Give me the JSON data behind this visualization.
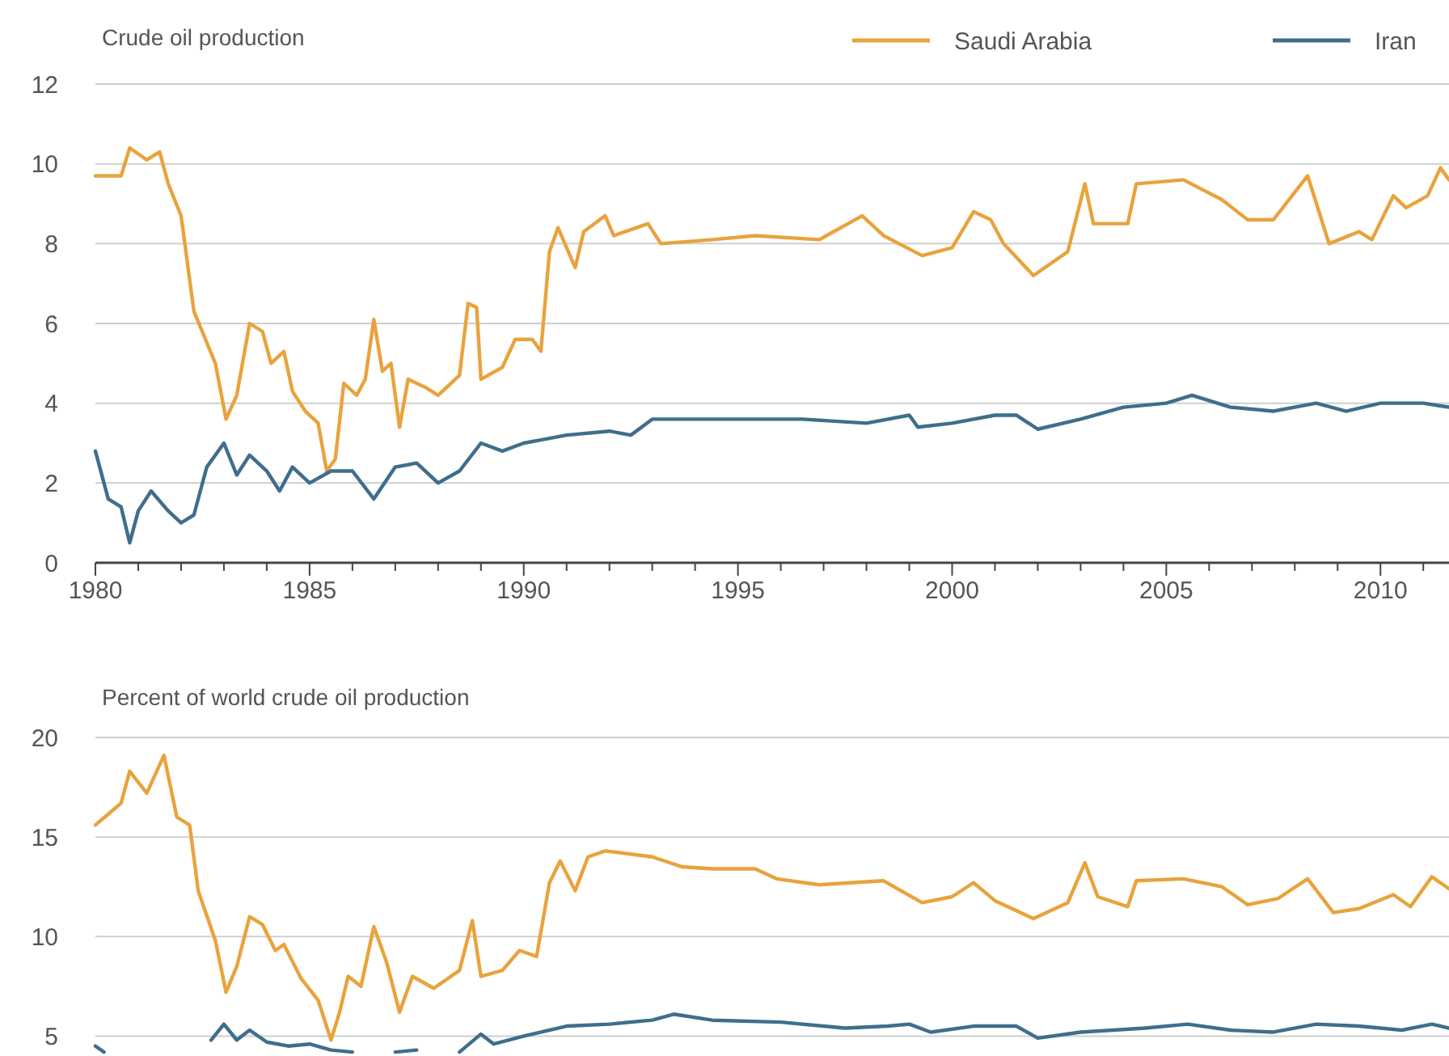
{
  "chart_data": [
    {
      "type": "line",
      "title": "Crude oil production",
      "legend": "top right",
      "grid": "y",
      "line_style": "solid",
      "marker": "none",
      "xlim": [
        1980,
        2011.6
      ],
      "ylim": [
        0,
        12
      ],
      "yticks": [
        0,
        2,
        4,
        6,
        8,
        10,
        12
      ],
      "xticks": [
        1980,
        {
          "value": 1981,
          "label": null
        },
        {
          "value": 1982,
          "label": null
        },
        {
          "value": 1983,
          "label": null
        },
        {
          "value": 1984,
          "label": null
        },
        1985,
        {
          "value": 1986,
          "label": null
        },
        {
          "value": 1987,
          "label": null
        },
        {
          "value": 1988,
          "label": null
        },
        {
          "value": 1989,
          "label": null
        },
        1990,
        {
          "value": 1991,
          "label": null
        },
        {
          "value": 1992,
          "label": null
        },
        {
          "value": 1993,
          "label": null
        },
        {
          "value": 1994,
          "label": null
        },
        1995,
        {
          "value": 1996,
          "label": null
        },
        {
          "value": 1997,
          "label": null
        },
        {
          "value": 1998,
          "label": null
        },
        {
          "value": 1999,
          "label": null
        },
        2000,
        {
          "value": 2001,
          "label": null
        },
        {
          "value": 2002,
          "label": null
        },
        {
          "value": 2003,
          "label": null
        },
        {
          "value": 2004,
          "label": null
        },
        2005,
        {
          "value": 2006,
          "label": null
        },
        {
          "value": 2007,
          "label": null
        },
        {
          "value": 2008,
          "label": null
        },
        {
          "value": 2009,
          "label": null
        },
        2010,
        {
          "value": 2011,
          "label": null
        }
      ],
      "series": [
        {
          "name": "Saudi Arabia",
          "color": "#e8a33d",
          "x": [
            1980,
            1980.6,
            1980.8,
            1981.2,
            1981.5,
            1981.7,
            1982,
            1982.3,
            1982.8,
            1983.05,
            1983.3,
            1983.6,
            1983.9,
            1984.1,
            1984.4,
            1984.6,
            1984.9,
            1985.2,
            1985.4,
            1985.6,
            1985.8,
            1986.1,
            1986.3,
            1986.5,
            1986.7,
            1986.9,
            1987.1,
            1987.3,
            1987.7,
            1988,
            1988.5,
            1988.7,
            1988.9,
            1989,
            1989.5,
            1989.8,
            1990.2,
            1990.4,
            1990.6,
            1990.8,
            1991.2,
            1991.4,
            1991.9,
            1992.1,
            1992.9,
            1993.2,
            1994.4,
            1995.4,
            1996.9,
            1997.9,
            1998.4,
            1999.3,
            2000,
            2000.5,
            2000.9,
            2001.2,
            2001.9,
            2002.7,
            2003.1,
            2003.3,
            2004.1,
            2004.3,
            2005.4,
            2006.3,
            2006.9,
            2007.5,
            2008.3,
            2008.8,
            2009.5,
            2009.8,
            2010.3,
            2010.6,
            2011.1,
            2011.4,
            2011.6
          ],
          "values": [
            9.7,
            9.7,
            10.4,
            10.1,
            10.3,
            9.5,
            8.7,
            6.3,
            5,
            3.6,
            4.2,
            6,
            5.8,
            5,
            5.3,
            4.3,
            3.8,
            3.5,
            2.3,
            2.6,
            4.5,
            4.2,
            4.6,
            6.1,
            4.8,
            5,
            3.4,
            4.6,
            4.4,
            4.2,
            4.7,
            6.5,
            6.4,
            4.6,
            4.9,
            5.6,
            5.6,
            5.3,
            7.8,
            8.4,
            7.4,
            8.3,
            8.7,
            8.2,
            8.5,
            8,
            8.1,
            8.2,
            8.1,
            8.7,
            8.2,
            7.7,
            7.9,
            8.8,
            8.6,
            8,
            7.2,
            7.8,
            9.5,
            8.5,
            8.5,
            9.5,
            9.6,
            9.1,
            8.6,
            8.6,
            9.7,
            8,
            8.3,
            8.1,
            9.2,
            8.9,
            9.2,
            9.9,
            9.6
          ]
        },
        {
          "name": "Iran",
          "color": "#3f6e8c",
          "x": [
            1980,
            1980.3,
            1980.6,
            1980.8,
            1981,
            1981.3,
            1981.7,
            1982,
            1982.3,
            1982.6,
            1983,
            1983.3,
            1983.6,
            1984,
            1984.3,
            1984.6,
            1985,
            1985.5,
            1986,
            1986.5,
            1987,
            1987.5,
            1988,
            1988.5,
            1989,
            1989.5,
            1990,
            1990.5,
            1991,
            1992,
            1992.5,
            1993,
            1994,
            1994.4,
            1996.5,
            1998,
            1999,
            1999.2,
            2000,
            2001,
            2001.5,
            2002,
            2003,
            2004,
            2005,
            2005.6,
            2006.5,
            2007.5,
            2008.5,
            2009.2,
            2010,
            2011,
            2011.6
          ],
          "values": [
            2.8,
            1.6,
            1.4,
            0.5,
            1.3,
            1.8,
            1.3,
            1,
            1.2,
            2.4,
            3,
            2.2,
            2.7,
            2.3,
            1.8,
            2.4,
            2,
            2.3,
            2.3,
            1.6,
            2.4,
            2.5,
            2,
            2.3,
            3,
            2.8,
            3,
            3.1,
            3.2,
            3.3,
            3.2,
            3.6,
            3.6,
            3.6,
            3.6,
            3.5,
            3.7,
            3.4,
            3.5,
            3.7,
            3.7,
            3.35,
            3.6,
            3.9,
            4,
            4.2,
            3.9,
            3.8,
            4,
            3.8,
            4,
            4,
            3.9
          ]
        }
      ]
    },
    {
      "type": "line",
      "title": "Percent of world crude oil production",
      "grid": "y",
      "line_style": "solid",
      "marker": "none",
      "tick_labels": "y",
      "xlim": [
        1980,
        2011.6
      ],
      "ylim": [
        4,
        20
      ],
      "yticks": [
        5,
        10,
        15,
        20
      ],
      "series": [
        {
          "color": "#e8a33d",
          "x": [
            1980,
            1980.6,
            1980.8,
            1981.2,
            1981.6,
            1981.9,
            1982.2,
            1982.4,
            1982.8,
            1983.05,
            1983.3,
            1983.6,
            1983.9,
            1984.2,
            1984.4,
            1984.8,
            1985.2,
            1985.5,
            1985.7,
            1985.9,
            1986.2,
            1986.5,
            1986.8,
            1987.1,
            1987.4,
            1987.9,
            1988.5,
            1988.8,
            1989,
            1989.5,
            1989.9,
            1990.3,
            1990.6,
            1990.85,
            1991.2,
            1991.5,
            1991.9,
            1993,
            1993.7,
            1994.4,
            1995.4,
            1995.9,
            1996.9,
            1998.4,
            1999.3,
            2000,
            2000.5,
            2001,
            2001.9,
            2002.7,
            2003.1,
            2003.4,
            2004.1,
            2004.3,
            2005.4,
            2006.3,
            2006.9,
            2007.6,
            2008.3,
            2008.9,
            2009.5,
            2010.3,
            2010.7,
            2011.2,
            2011.6
          ],
          "values": [
            15.6,
            16.7,
            18.3,
            17.2,
            19.1,
            16,
            15.6,
            12.3,
            9.8,
            7.2,
            8.5,
            11,
            10.6,
            9.3,
            9.6,
            7.9,
            6.8,
            4.8,
            6.2,
            8,
            7.5,
            10.5,
            8.7,
            6.2,
            8,
            7.4,
            8.3,
            10.8,
            8,
            8.3,
            9.3,
            9,
            12.7,
            13.8,
            12.3,
            14,
            14.3,
            14,
            13.5,
            13.4,
            13.4,
            12.9,
            12.6,
            12.8,
            11.7,
            12,
            12.7,
            11.8,
            10.9,
            11.7,
            13.7,
            12,
            11.5,
            12.8,
            12.9,
            12.5,
            11.6,
            11.9,
            12.9,
            11.2,
            11.4,
            12.1,
            11.5,
            13,
            12.4
          ]
        },
        {
          "color": "#3f6e8c",
          "x": [
            1980,
            1980.2,
            1980.3,
            1982.4,
            1982.7,
            1983,
            1983.3,
            1983.6,
            1984,
            1984.5,
            1985,
            1985.5,
            1986,
            1986.5,
            1987,
            1987.5,
            1988,
            1988.5,
            1989,
            1989.3,
            1990,
            1991,
            1992,
            1993,
            1993.5,
            1994.4,
            1996,
            1997.5,
            1998.5,
            1999,
            1999.5,
            2000.5,
            2001.5,
            2002,
            2003,
            2004.5,
            2005.5,
            2006.5,
            2007.5,
            2008.5,
            2009.5,
            2010.5,
            2011.2,
            2011.6
          ],
          "values": [
            4.5,
            4.2,
            null,
            null,
            4.8,
            5.6,
            4.8,
            5.3,
            4.7,
            4.5,
            4.6,
            4.3,
            4.2,
            null,
            4.2,
            4.3,
            null,
            4.2,
            5.1,
            4.6,
            5,
            5.5,
            5.6,
            5.8,
            6.1,
            5.8,
            5.7,
            5.4,
            5.5,
            5.6,
            5.2,
            5.5,
            5.5,
            4.9,
            5.2,
            5.4,
            5.6,
            5.3,
            5.2,
            5.6,
            5.5,
            5.3,
            5.6,
            5.4
          ]
        }
      ]
    }
  ]
}
